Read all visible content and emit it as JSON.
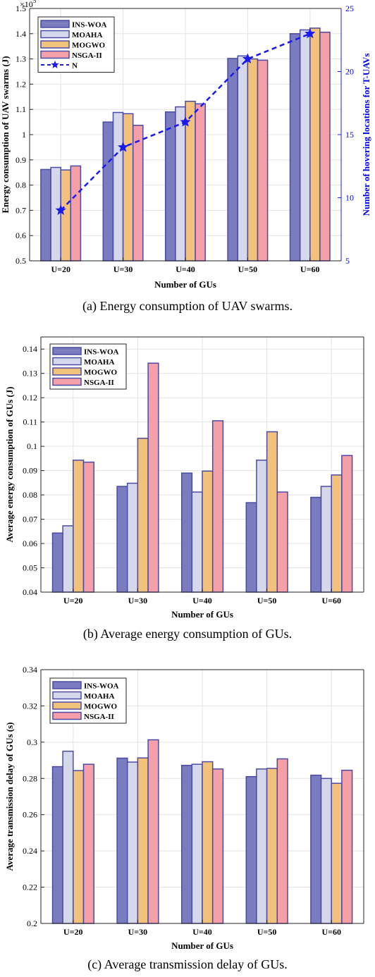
{
  "chart_data": [
    {
      "type": "bar",
      "caption": "(a) Energy consumption of UAV swarms.",
      "xlabel": "Number of GUs",
      "ylabel": "Energy consumption of UAV swarms (J)",
      "y_exponent_label": "×10",
      "y_exponent_power": "5",
      "y2label": "Number of hovering locations for T-UAVs",
      "categories": [
        "U=20",
        "U=30",
        "U=40",
        "U=50",
        "U=60"
      ],
      "ylim": [
        0.5,
        1.5
      ],
      "yticks": [
        "0.5",
        "0.6",
        "0.7",
        "0.8",
        "0.9",
        "1",
        "1.1",
        "1.2",
        "1.3",
        "1.4",
        "1.5"
      ],
      "y2lim": [
        5,
        25
      ],
      "y2ticks": [
        "5",
        "10",
        "15",
        "20",
        "25"
      ],
      "grid": true,
      "legend_position": "top-left",
      "series": [
        {
          "name": "INS-WOA",
          "values": [
            0.862,
            1.05,
            1.09,
            1.302,
            1.4
          ]
        },
        {
          "name": "MOAHA",
          "values": [
            0.87,
            1.088,
            1.11,
            1.312,
            1.415
          ]
        },
        {
          "name": "MOGWO",
          "values": [
            0.86,
            1.083,
            1.132,
            1.3,
            1.422
          ]
        },
        {
          "name": "NSGA-II",
          "values": [
            0.876,
            1.037,
            1.122,
            1.295,
            1.406
          ]
        }
      ],
      "line_series": {
        "name": "N",
        "axis": "right",
        "values": [
          9,
          14,
          16,
          21,
          23
        ]
      }
    },
    {
      "type": "bar",
      "caption": "(b) Average energy consumption of GUs.",
      "xlabel": "Number of GUs",
      "ylabel": "Average energy consumption of GUs (J)",
      "categories": [
        "U=20",
        "U=30",
        "U=40",
        "U=50",
        "U=60"
      ],
      "ylim": [
        0.04,
        0.145
      ],
      "yticks": [
        "0.04",
        "0.05",
        "0.06",
        "0.07",
        "0.08",
        "0.09",
        "0.1",
        "0.11",
        "0.12",
        "0.13",
        "0.14"
      ],
      "grid": true,
      "legend_position": "top-left",
      "series": [
        {
          "name": "INS-WOA",
          "values": [
            0.0643,
            0.0835,
            0.089,
            0.0768,
            0.079
          ]
        },
        {
          "name": "MOAHA",
          "values": [
            0.0673,
            0.0848,
            0.0812,
            0.0943,
            0.0835
          ]
        },
        {
          "name": "MOGWO",
          "values": [
            0.0943,
            0.1033,
            0.0898,
            0.106,
            0.0882
          ]
        },
        {
          "name": "NSGA-II",
          "values": [
            0.0935,
            0.1342,
            0.1105,
            0.0812,
            0.0962
          ]
        }
      ]
    },
    {
      "type": "bar",
      "caption": "(c) Average transmission delay of GUs.",
      "xlabel": "Number of GUs",
      "ylabel": "Average transmission delay of GUs (s)",
      "categories": [
        "U=20",
        "U=30",
        "U=40",
        "U=50",
        "U=60"
      ],
      "ylim": [
        0.2,
        0.34
      ],
      "yticks": [
        "0.2",
        "0.22",
        "0.24",
        "0.26",
        "0.28",
        "0.3",
        "0.32",
        "0.34"
      ],
      "grid": true,
      "legend_position": "top-left",
      "series": [
        {
          "name": "INS-WOA",
          "values": [
            0.2865,
            0.2912,
            0.2872,
            0.281,
            0.2818
          ]
        },
        {
          "name": "MOAHA",
          "values": [
            0.295,
            0.289,
            0.2878,
            0.2852,
            0.28
          ]
        },
        {
          "name": "MOGWO",
          "values": [
            0.2843,
            0.2913,
            0.2892,
            0.2855,
            0.2773
          ]
        },
        {
          "name": "NSGA-II",
          "values": [
            0.2878,
            0.3013,
            0.2852,
            0.2908,
            0.2845
          ]
        }
      ]
    }
  ],
  "colors": {
    "bar_fills": [
      "#7b7bbf",
      "#d4d8ea",
      "#f2c27d",
      "#f5a0a8"
    ],
    "bar_edges": [
      "#4b4ba6",
      "#4b4ba6",
      "#4b4ba6",
      "#4b4ba6"
    ],
    "line": "#1a1aee",
    "grid": "#e3e3e3",
    "axis": "#262626"
  }
}
